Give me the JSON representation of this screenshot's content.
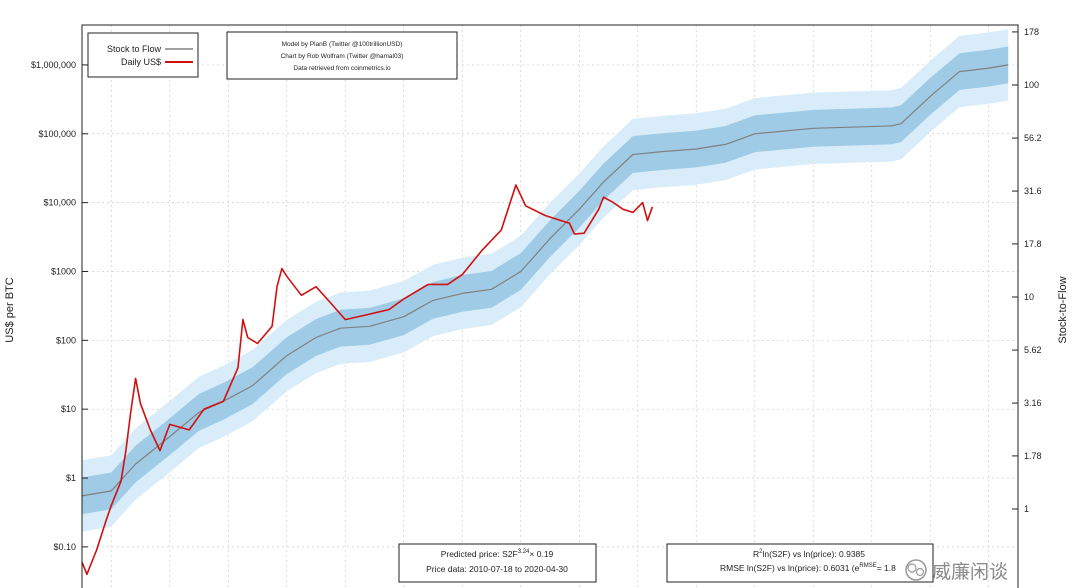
{
  "chart_data": {
    "type": "line",
    "y_scale": "log",
    "y_axis": {
      "label": "US$ per BTC",
      "ticks": [
        "$0.10",
        "$1",
        "$10",
        "$100",
        "$1000",
        "$10,000",
        "$100,000",
        "$1,000,000"
      ],
      "tick_values": [
        0.1,
        1,
        10,
        100,
        1000,
        10000,
        100000,
        1000000
      ],
      "range": [
        0.02,
        3800000
      ]
    },
    "y2_axis": {
      "label": "Stock-to-Flow",
      "ticks": [
        "1",
        "1.78",
        "3.16",
        "5.62",
        "10",
        "17.8",
        "31.6",
        "56.2",
        "100",
        "178"
      ],
      "tick_values": [
        1,
        1.78,
        3.16,
        5.62,
        10,
        17.8,
        31.6,
        56.2,
        100,
        178
      ]
    },
    "x_axis": {
      "range": [
        "2010-07",
        "2026-07"
      ]
    },
    "grid": true,
    "legend": {
      "position": "top-left",
      "entries": [
        {
          "name": "Stock to Flow",
          "color": "#808080"
        },
        {
          "name": "Daily US$",
          "color": "#d01010"
        }
      ]
    },
    "band_colors": {
      "inner": "#9fcbe6",
      "outer": "#d8edf9"
    },
    "series": [
      {
        "name": "Stock to Flow",
        "color": "#808080",
        "points": [
          [
            "2010-07",
            0.55
          ],
          [
            "2011-01",
            0.65
          ],
          [
            "2011-06",
            1.6
          ],
          [
            "2012-01",
            4
          ],
          [
            "2012-07",
            9
          ],
          [
            "2012-12",
            13
          ],
          [
            "2013-06",
            22
          ],
          [
            "2014-01",
            60
          ],
          [
            "2014-07",
            110
          ],
          [
            "2014-12",
            150
          ],
          [
            "2015-06",
            160
          ],
          [
            "2016-01",
            220
          ],
          [
            "2016-07",
            380
          ],
          [
            "2017-01",
            480
          ],
          [
            "2017-07",
            550
          ],
          [
            "2018-01",
            1000
          ],
          [
            "2018-07",
            3000
          ],
          [
            "2019-01",
            8000
          ],
          [
            "2019-06",
            20000
          ],
          [
            "2019-12",
            50000
          ],
          [
            "2020-06",
            55000
          ],
          [
            "2021-01",
            60000
          ],
          [
            "2021-07",
            70000
          ],
          [
            "2022-01",
            100000
          ],
          [
            "2023-01",
            120000
          ],
          [
            "2024-05",
            130000
          ],
          [
            "2024-07",
            140000
          ],
          [
            "2025-01",
            350000
          ],
          [
            "2025-07",
            800000
          ],
          [
            "2026-01",
            900000
          ],
          [
            "2026-05",
            1000000
          ]
        ]
      },
      {
        "name": "Daily US$",
        "color": "#d01010",
        "points": [
          [
            "2010-07",
            0.06
          ],
          [
            "2010-08",
            0.04
          ],
          [
            "2010-10",
            0.09
          ],
          [
            "2010-12",
            0.25
          ],
          [
            "2011-01",
            0.4
          ],
          [
            "2011-03",
            0.9
          ],
          [
            "2011-04",
            2.5
          ],
          [
            "2011-05",
            9
          ],
          [
            "2011-06",
            28
          ],
          [
            "2011-07",
            12
          ],
          [
            "2011-09",
            5
          ],
          [
            "2011-11",
            2.5
          ],
          [
            "2012-01",
            6
          ],
          [
            "2012-05",
            5
          ],
          [
            "2012-08",
            10
          ],
          [
            "2012-12",
            13
          ],
          [
            "2013-03",
            40
          ],
          [
            "2013-04",
            200
          ],
          [
            "2013-05",
            110
          ],
          [
            "2013-07",
            90
          ],
          [
            "2013-10",
            160
          ],
          [
            "2013-11",
            600
          ],
          [
            "2013-12",
            1100
          ],
          [
            "2014-01",
            850
          ],
          [
            "2014-04",
            450
          ],
          [
            "2014-07",
            600
          ],
          [
            "2014-10",
            350
          ],
          [
            "2015-01",
            200
          ],
          [
            "2015-06",
            240
          ],
          [
            "2015-10",
            280
          ],
          [
            "2016-01",
            400
          ],
          [
            "2016-06",
            650
          ],
          [
            "2016-10",
            650
          ],
          [
            "2017-01",
            900
          ],
          [
            "2017-05",
            2000
          ],
          [
            "2017-09",
            4000
          ],
          [
            "2017-12",
            18000
          ],
          [
            "2018-02",
            9000
          ],
          [
            "2018-06",
            6500
          ],
          [
            "2018-11",
            5000
          ],
          [
            "2018-12",
            3500
          ],
          [
            "2019-02",
            3600
          ],
          [
            "2019-05",
            8000
          ],
          [
            "2019-06",
            12000
          ],
          [
            "2019-08",
            10000
          ],
          [
            "2019-10",
            8000
          ],
          [
            "2019-12",
            7200
          ],
          [
            "2020-02",
            10000
          ],
          [
            "2020-03",
            5500
          ],
          [
            "2020-04",
            8700
          ]
        ]
      }
    ],
    "info_box": {
      "lines": [
        "Model by PlanB (Twitter @100trillionUSD)",
        "Chart by Rob Wolfram (Twitter @hamal03)",
        "Data retrieved from coinmetrics.io"
      ]
    },
    "annotations": {
      "predicted": {
        "prefix": "Predicted price: S2F",
        "exp": "3.24",
        "suffix": "× 0.19"
      },
      "price_data": "Price data: 2010-07-18 to 2020-04-30",
      "r2": {
        "pre": "R",
        "sup": "2",
        "post": "ln(S2F) vs ln(price): 0.9385"
      },
      "rmse": {
        "pre": "RMSE ln(S2F) vs ln(price): 0.6031 (e",
        "sup": "RMSE",
        "post": "= 1.8"
      }
    }
  },
  "watermark": "威廉闲谈"
}
